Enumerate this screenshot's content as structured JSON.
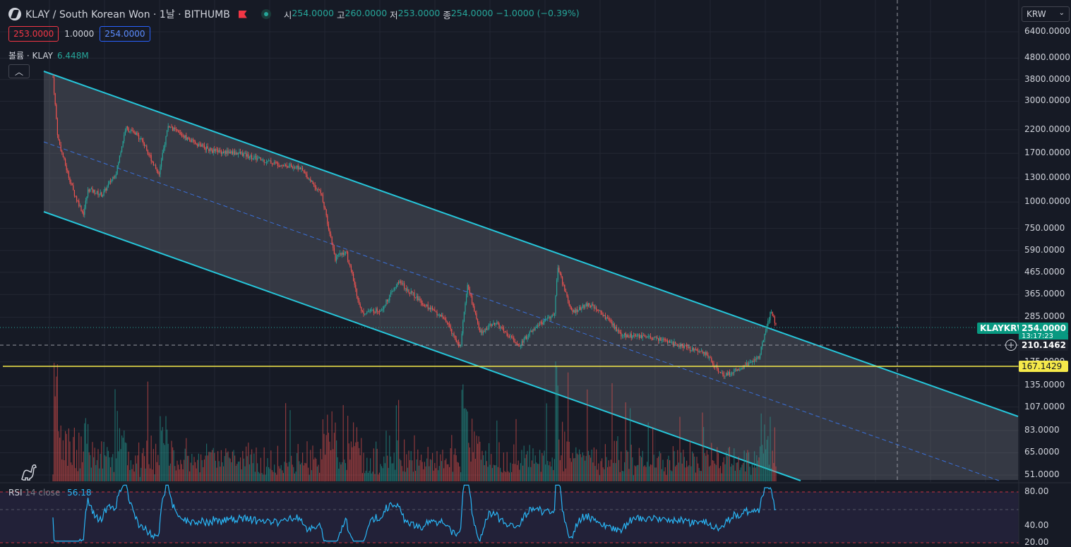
{
  "header": {
    "title": "KLAY / South Korean Won · 1날 · BITHUMB",
    "ohlc": [
      {
        "label": "시",
        "value": "254.0000"
      },
      {
        "label": "고",
        "value": "260.0000"
      },
      {
        "label": "저",
        "value": "253.0000"
      },
      {
        "label": "종",
        "value": "254.0000"
      }
    ],
    "change": "−1.0000 (−0.39%)"
  },
  "quote": {
    "bid": "253.0000",
    "spread": "1.0000",
    "ask": "254.0000"
  },
  "volume_legend": {
    "label": "볼륨 · KLAY",
    "value": "6.448M"
  },
  "rsi_legend": {
    "name": "RSI",
    "params": "14 close",
    "value": "56.18"
  },
  "currency": "KRW",
  "price_axis": [
    "6400.0000",
    "4800.0000",
    "3800.0000",
    "3000.0000",
    "2200.0000",
    "1700.0000",
    "1300.0000",
    "1000.0000",
    "750.0000",
    "590.0000",
    "465.0000",
    "365.0000",
    "285.0000",
    "175.0000",
    "135.0000",
    "107.0000",
    "83.0000",
    "65.0000",
    "51.0000"
  ],
  "rsi_axis": [
    "80.00",
    "40.00",
    "20.00"
  ],
  "tags": {
    "symbol": "KLAYKRW",
    "last_price": "254.0000",
    "countdown": "13:17:23",
    "crosshair_price": "210.1462",
    "horizontal_line_price": "167.1429"
  },
  "colors": {
    "background": "#161a25",
    "up": "#26a69a",
    "down": "#ef5350",
    "channel": "#26c6da",
    "midline": "#3a6fd8",
    "hline": "#f5e94a",
    "rsi": "#29b6f6"
  },
  "chart_data": {
    "type": "candlestick",
    "symbol": "KLAY / South Korean Won",
    "timeframe": "1날",
    "exchange": "BITHUMB",
    "yscale": "log",
    "ylim": [
      45,
      7000
    ],
    "close_path": [
      {
        "x": 75,
        "y": 3900
      },
      {
        "x": 82,
        "y": 2000
      },
      {
        "x": 95,
        "y": 1400
      },
      {
        "x": 105,
        "y": 1100
      },
      {
        "x": 118,
        "y": 880
      },
      {
        "x": 125,
        "y": 1150
      },
      {
        "x": 145,
        "y": 1080
      },
      {
        "x": 165,
        "y": 1400
      },
      {
        "x": 178,
        "y": 2250
      },
      {
        "x": 200,
        "y": 2000
      },
      {
        "x": 225,
        "y": 1350
      },
      {
        "x": 238,
        "y": 2300
      },
      {
        "x": 270,
        "y": 1950
      },
      {
        "x": 300,
        "y": 1750
      },
      {
        "x": 340,
        "y": 1700
      },
      {
        "x": 380,
        "y": 1550
      },
      {
        "x": 425,
        "y": 1450
      },
      {
        "x": 455,
        "y": 1100
      },
      {
        "x": 475,
        "y": 540
      },
      {
        "x": 490,
        "y": 590
      },
      {
        "x": 512,
        "y": 300
      },
      {
        "x": 540,
        "y": 310
      },
      {
        "x": 565,
        "y": 420
      },
      {
        "x": 600,
        "y": 330
      },
      {
        "x": 630,
        "y": 280
      },
      {
        "x": 652,
        "y": 205
      },
      {
        "x": 662,
        "y": 410
      },
      {
        "x": 680,
        "y": 240
      },
      {
        "x": 700,
        "y": 270
      },
      {
        "x": 735,
        "y": 210
      },
      {
        "x": 760,
        "y": 260
      },
      {
        "x": 785,
        "y": 290
      },
      {
        "x": 790,
        "y": 490
      },
      {
        "x": 810,
        "y": 300
      },
      {
        "x": 835,
        "y": 330
      },
      {
        "x": 860,
        "y": 280
      },
      {
        "x": 880,
        "y": 235
      },
      {
        "x": 905,
        "y": 230
      },
      {
        "x": 935,
        "y": 225
      },
      {
        "x": 980,
        "y": 200
      },
      {
        "x": 1000,
        "y": 190
      },
      {
        "x": 1025,
        "y": 150
      },
      {
        "x": 1050,
        "y": 165
      },
      {
        "x": 1075,
        "y": 185
      },
      {
        "x": 1092,
        "y": 305
      },
      {
        "x": 1100,
        "y": 254
      }
    ],
    "rsi": {
      "ylim": [
        20,
        90
      ],
      "bands": [
        30,
        70
      ],
      "last": 56.18
    }
  }
}
